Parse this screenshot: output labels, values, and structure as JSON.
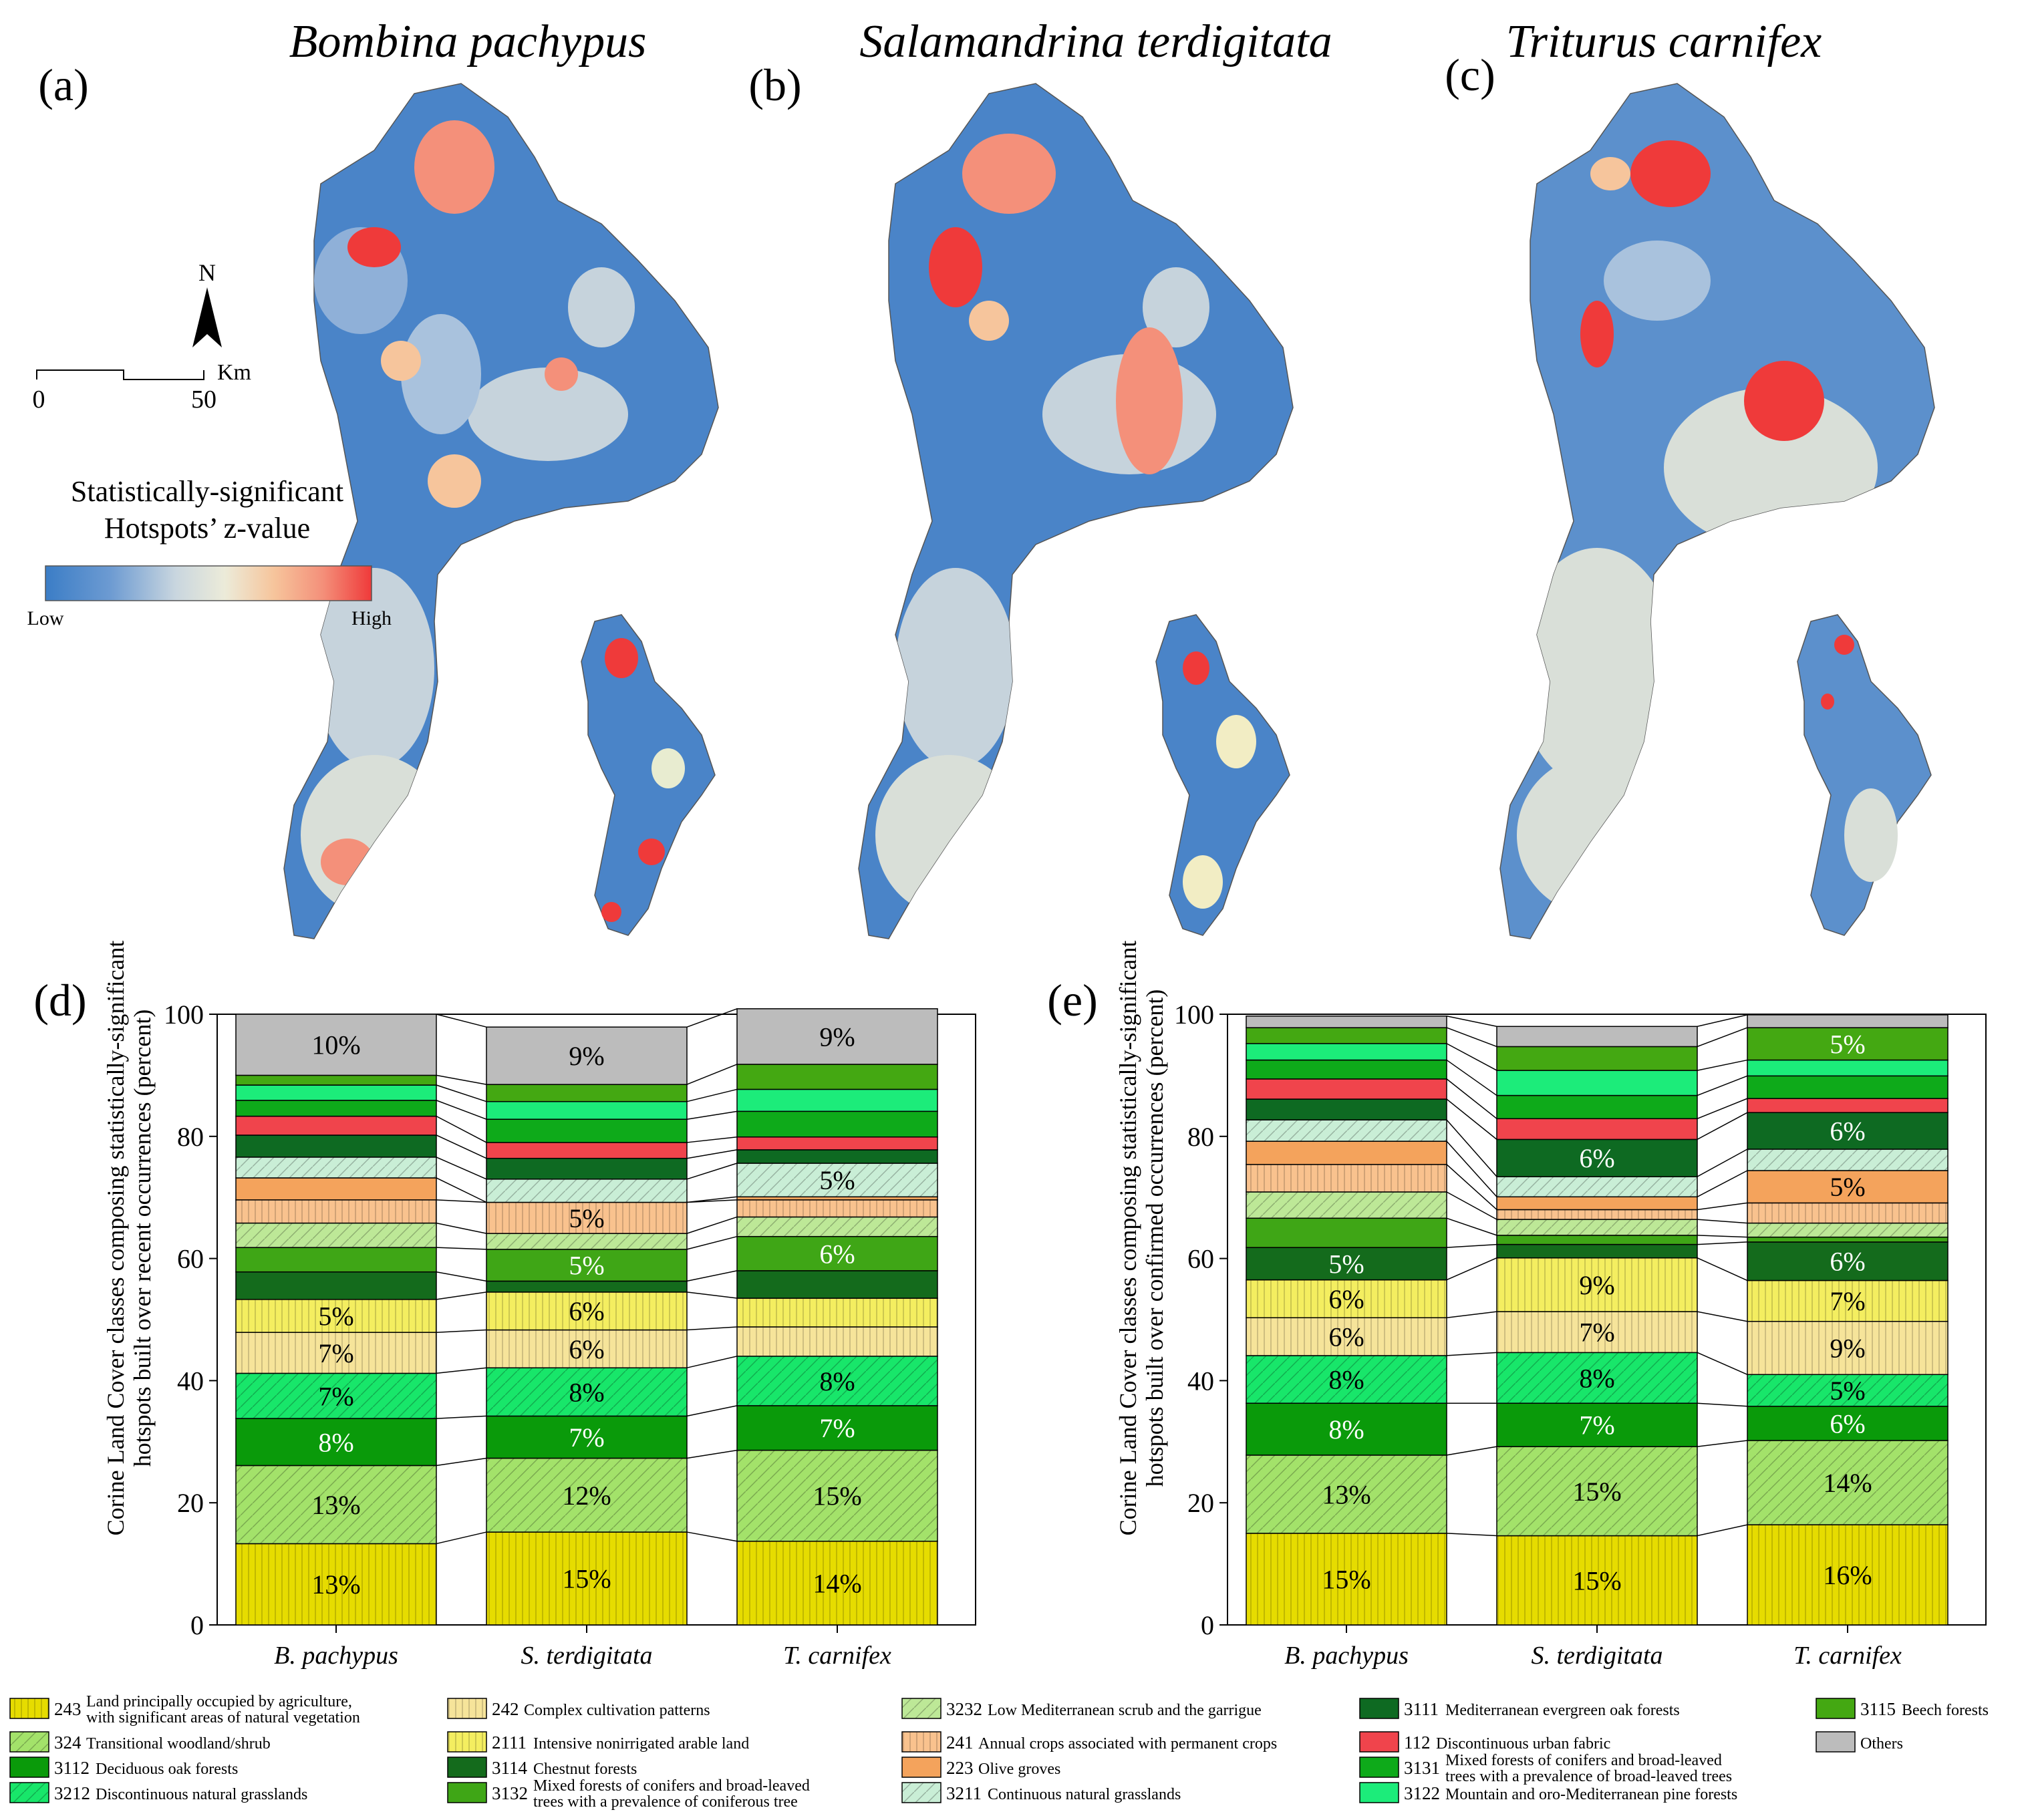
{
  "maps": [
    {
      "label": "(a)",
      "species": "Bombina pachypus"
    },
    {
      "label": "(b)",
      "species": "Salamandrina terdigitata"
    },
    {
      "label": "(c)",
      "species": "Triturus carnifex"
    }
  ],
  "map_legend": {
    "north": "N",
    "scale_unit": "Km",
    "scale_start": "0",
    "scale_end": "50",
    "title_line1": "Statistically-significant",
    "title_line2": "Hotspots’ z-value",
    "low": "Low",
    "high": "High",
    "ramp_colors": [
      "#3b7dc6",
      "#6d9bd2",
      "#a7c2de",
      "#e8e8d8",
      "#f4c9a0",
      "#f59a7e",
      "#ef3a3a"
    ]
  },
  "colors": {
    "c243": "#e6dc00",
    "c324": "#a3e26a",
    "c3112": "#0a9a0a",
    "c3212": "#18e66a",
    "c242": "#f6e49a",
    "c2111": "#f4ee60",
    "c3114": "#146b1c",
    "c3132": "#3fa616",
    "c3232": "#bde897",
    "c241": "#f9c28e",
    "c223": "#f4a35c",
    "c3211": "#c9eed6",
    "c3111": "#0e6a22",
    "c112": "#f0444c",
    "c3131": "#0eaa1a",
    "c3122": "#1cec7a",
    "c3115": "#44a812",
    "others": "#bcbcbc"
  },
  "legend": [
    {
      "key": "c243",
      "code": "243",
      "desc": "Land principally occupied by agriculture, with significant areas of natural vegetation"
    },
    {
      "key": "c324",
      "code": "324",
      "desc": "Transitional woodland/shrub"
    },
    {
      "key": "c3112",
      "code": "3112",
      "desc": "Deciduous oak forests"
    },
    {
      "key": "c3212",
      "code": "3212",
      "desc": "Discontinuous natural grasslands"
    },
    {
      "key": "c242",
      "code": "242",
      "desc": "Complex cultivation patterns"
    },
    {
      "key": "c2111",
      "code": "2111",
      "desc": "Intensive nonirrigated arable land"
    },
    {
      "key": "c3114",
      "code": "3114",
      "desc": "Chestnut forests"
    },
    {
      "key": "c3132",
      "code": "3132",
      "desc": "Mixed forests of conifers and broad-leaved trees with a prevalence of coniferous tree"
    },
    {
      "key": "c3232",
      "code": "3232",
      "desc": "Low Mediterranean scrub and the garrigue"
    },
    {
      "key": "c241",
      "code": "241",
      "desc": "Annual crops associated with permanent crops"
    },
    {
      "key": "c223",
      "code": "223",
      "desc": "Olive groves"
    },
    {
      "key": "c3211",
      "code": "3211",
      "desc": "Continuous natural grasslands"
    },
    {
      "key": "c3111",
      "code": "3111",
      "desc": "Mediterranean evergreen oak forests"
    },
    {
      "key": "c112",
      "code": "112",
      "desc": "Discontinuous urban fabric"
    },
    {
      "key": "c3131",
      "code": "3131",
      "desc": "Mixed forests of conifers and broad-leaved trees with a prevalence of broad-leaved trees"
    },
    {
      "key": "c3122",
      "code": "3122",
      "desc": "Mountain and oro-Mediterranean pine forests"
    },
    {
      "key": "c3115",
      "code": "3115",
      "desc": "Beech forests"
    },
    {
      "key": "others",
      "code": "",
      "desc": "Others"
    }
  ],
  "chart_data": [
    {
      "type": "bar",
      "subtype": "stacked-100",
      "panel": "(d)",
      "ylabel_line1": "Corine Land Cover classes composing statistically-significant",
      "ylabel_line2": "hotspots built over recent occurrences (percent)",
      "ylim": [
        0,
        100
      ],
      "yticks": [
        "0",
        "20",
        "40",
        "60",
        "80",
        "100"
      ],
      "categories": [
        "B. pachypus",
        "S. terdigitata",
        "T. carnifex"
      ],
      "series": [
        {
          "key": "c243",
          "values": [
            13.3,
            15.2,
            13.7
          ],
          "labels": [
            "13%",
            "15%",
            "14%"
          ]
        },
        {
          "key": "c324",
          "values": [
            12.8,
            12.1,
            14.9
          ],
          "labels": [
            "13%",
            "12%",
            "15%"
          ]
        },
        {
          "key": "c3112",
          "values": [
            7.7,
            6.9,
            7.3
          ],
          "labels": [
            "8%",
            "7%",
            "7%"
          ]
        },
        {
          "key": "c3212",
          "values": [
            7.4,
            7.9,
            8.1
          ],
          "labels": [
            "7%",
            "8%",
            "8%"
          ]
        },
        {
          "key": "c242",
          "values": [
            6.7,
            6.2,
            4.8
          ],
          "labels": [
            "7%",
            "6%",
            ""
          ]
        },
        {
          "key": "c2111",
          "values": [
            5.4,
            6.2,
            4.7
          ],
          "labels": [
            "5%",
            "6%",
            ""
          ]
        },
        {
          "key": "c3114",
          "values": [
            4.5,
            1.8,
            4.5
          ],
          "labels": [
            "",
            "",
            ""
          ]
        },
        {
          "key": "c3132",
          "values": [
            4.0,
            5.2,
            5.6
          ],
          "labels": [
            "",
            "5%",
            "6%"
          ]
        },
        {
          "key": "c3232",
          "values": [
            4.0,
            2.6,
            3.2
          ],
          "labels": [
            "",
            "",
            ""
          ]
        },
        {
          "key": "c241",
          "values": [
            3.8,
            5.1,
            2.8
          ],
          "labels": [
            "",
            "5%",
            ""
          ]
        },
        {
          "key": "c223",
          "values": [
            3.6,
            0.0,
            0.5
          ],
          "labels": [
            "",
            "",
            ""
          ]
        },
        {
          "key": "c3211",
          "values": [
            3.4,
            3.8,
            5.5
          ],
          "labels": [
            "",
            "",
            "5%"
          ]
        },
        {
          "key": "c3111",
          "values": [
            3.6,
            3.4,
            2.2
          ],
          "labels": [
            "",
            "",
            ""
          ]
        },
        {
          "key": "c112",
          "values": [
            3.1,
            2.6,
            2.1
          ],
          "labels": [
            "",
            "",
            ""
          ]
        },
        {
          "key": "c3131",
          "values": [
            2.6,
            3.8,
            4.2
          ],
          "labels": [
            "",
            "",
            ""
          ]
        },
        {
          "key": "c3122",
          "values": [
            2.5,
            2.9,
            3.6
          ],
          "labels": [
            "",
            "",
            ""
          ]
        },
        {
          "key": "c3115",
          "values": [
            1.6,
            2.8,
            4.1
          ],
          "labels": [
            "",
            "",
            ""
          ]
        },
        {
          "key": "others",
          "values": [
            10.0,
            9.4,
            9.1
          ],
          "labels": [
            "10%",
            "9%",
            "9%"
          ]
        }
      ]
    },
    {
      "type": "bar",
      "subtype": "stacked-100",
      "panel": "(e)",
      "ylabel_line1": "Corine Land Cover classes composing statistically-significant",
      "ylabel_line2": "hotspots built over confirmed occurrences (percent)",
      "ylim": [
        0,
        100
      ],
      "yticks": [
        "0",
        "20",
        "40",
        "60",
        "80",
        "100"
      ],
      "categories": [
        "B. pachypus",
        "S. terdigitata",
        "T. carnifex"
      ],
      "series": [
        {
          "key": "c243",
          "values": [
            15.0,
            14.6,
            16.4
          ],
          "labels": [
            "15%",
            "15%",
            "16%"
          ]
        },
        {
          "key": "c324",
          "values": [
            12.8,
            14.6,
            13.8
          ],
          "labels": [
            "13%",
            "15%",
            "14%"
          ]
        },
        {
          "key": "c3112",
          "values": [
            8.5,
            7.1,
            5.6
          ],
          "labels": [
            "8%",
            "7%",
            "6%"
          ]
        },
        {
          "key": "c3212",
          "values": [
            7.8,
            8.3,
            5.2
          ],
          "labels": [
            "8%",
            "8%",
            "5%"
          ]
        },
        {
          "key": "c242",
          "values": [
            6.2,
            6.7,
            8.7
          ],
          "labels": [
            "6%",
            "7%",
            "9%"
          ]
        },
        {
          "key": "c2111",
          "values": [
            6.2,
            8.8,
            6.7
          ],
          "labels": [
            "6%",
            "9%",
            "7%"
          ]
        },
        {
          "key": "c3114",
          "values": [
            5.3,
            2.2,
            6.3
          ],
          "labels": [
            "5%",
            "",
            "6%"
          ]
        },
        {
          "key": "c3132",
          "values": [
            4.8,
            1.5,
            0.8
          ],
          "labels": [
            "",
            "",
            ""
          ]
        },
        {
          "key": "c3232",
          "values": [
            4.3,
            2.6,
            2.3
          ],
          "labels": [
            "",
            "",
            ""
          ]
        },
        {
          "key": "c241",
          "values": [
            4.5,
            1.6,
            3.3
          ],
          "labels": [
            "",
            "",
            ""
          ]
        },
        {
          "key": "c223",
          "values": [
            3.8,
            2.1,
            5.3
          ],
          "labels": [
            "",
            "",
            "5%"
          ]
        },
        {
          "key": "c3211",
          "values": [
            3.5,
            3.3,
            3.5
          ],
          "labels": [
            "",
            "",
            ""
          ]
        },
        {
          "key": "c3111",
          "values": [
            3.4,
            6.1,
            6.0
          ],
          "labels": [
            "",
            "6%",
            "6%"
          ]
        },
        {
          "key": "c112",
          "values": [
            3.3,
            3.4,
            2.3
          ],
          "labels": [
            "",
            "",
            ""
          ]
        },
        {
          "key": "c3131",
          "values": [
            3.1,
            3.8,
            3.7
          ],
          "labels": [
            "",
            "",
            ""
          ]
        },
        {
          "key": "c3122",
          "values": [
            2.7,
            4.1,
            2.6
          ],
          "labels": [
            "",
            "",
            ""
          ]
        },
        {
          "key": "c3115",
          "values": [
            2.6,
            3.9,
            5.3
          ],
          "labels": [
            "",
            "",
            "5%"
          ]
        },
        {
          "key": "others",
          "values": [
            1.9,
            3.3,
            2.1
          ],
          "labels": [
            "",
            "",
            ""
          ]
        }
      ]
    }
  ]
}
